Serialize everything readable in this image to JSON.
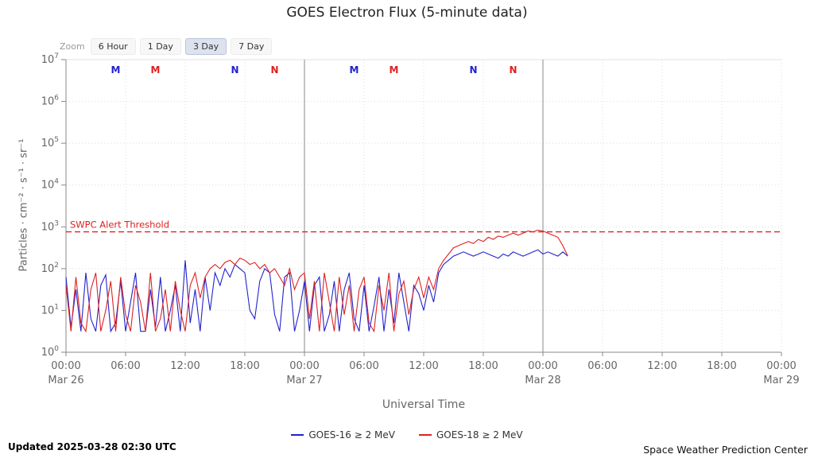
{
  "title": "GOES Electron Flux (5-minute data)",
  "zoom": {
    "label": "Zoom",
    "options": [
      {
        "label": "6 Hour",
        "selected": false
      },
      {
        "label": "1 Day",
        "selected": false
      },
      {
        "label": "3 Day",
        "selected": true
      },
      {
        "label": "7 Day",
        "selected": false
      }
    ]
  },
  "chart_data": {
    "type": "line",
    "title": "GOES Electron Flux (5-minute data)",
    "xlabel": "Universal Time",
    "ylabel": "Particles · cm⁻² · s⁻¹ · sr⁻¹",
    "x_axis": {
      "hours_span": 72,
      "start": "Mar 26 00:00 UTC",
      "end": "Mar 29 00:00 UTC",
      "ticks": [
        {
          "hour": 0,
          "time": "00:00",
          "date": "Mar 26"
        },
        {
          "hour": 6,
          "time": "06:00"
        },
        {
          "hour": 12,
          "time": "12:00"
        },
        {
          "hour": 18,
          "time": "18:00"
        },
        {
          "hour": 24,
          "time": "00:00",
          "date": "Mar 27"
        },
        {
          "hour": 30,
          "time": "06:00"
        },
        {
          "hour": 36,
          "time": "12:00"
        },
        {
          "hour": 42,
          "time": "18:00"
        },
        {
          "hour": 48,
          "time": "00:00",
          "date": "Mar 28"
        },
        {
          "hour": 54,
          "time": "06:00"
        },
        {
          "hour": 60,
          "time": "12:00"
        },
        {
          "hour": 66,
          "time": "18:00"
        },
        {
          "hour": 72,
          "time": "00:00",
          "date": "Mar 29"
        }
      ]
    },
    "y_axis": {
      "scale": "log",
      "min_exponent": 0,
      "max_exponent": 7,
      "tick_exponents": [
        0,
        1,
        2,
        3,
        4,
        5,
        6,
        7
      ],
      "tick_base": "10"
    },
    "threshold": {
      "label": "SWPC Alert Threshold",
      "log_value": 2.88,
      "color": "#dd2222"
    },
    "satellite_markers": [
      {
        "label": "M",
        "hour": 5,
        "color": "#2222cc"
      },
      {
        "label": "M",
        "hour": 9,
        "color": "#dd2222"
      },
      {
        "label": "N",
        "hour": 17,
        "color": "#2222cc"
      },
      {
        "label": "N",
        "hour": 21,
        "color": "#dd2222"
      },
      {
        "label": "M",
        "hour": 29,
        "color": "#2222cc"
      },
      {
        "label": "M",
        "hour": 33,
        "color": "#dd2222"
      },
      {
        "label": "N",
        "hour": 41,
        "color": "#2222cc"
      },
      {
        "label": "N",
        "hour": 45,
        "color": "#dd2222"
      }
    ],
    "series": [
      {
        "name": "GOES-16 ≥ 2 MeV",
        "color": "#2222cc",
        "start_hour": 0,
        "step_hours": 0.5,
        "log_values": [
          1.8,
          0.6,
          1.5,
          0.5,
          1.9,
          0.8,
          0.5,
          1.6,
          1.85,
          0.5,
          0.7,
          1.7,
          0.5,
          1.2,
          1.9,
          0.5,
          0.5,
          1.5,
          0.6,
          1.8,
          0.5,
          1.0,
          1.6,
          0.5,
          2.2,
          0.7,
          1.5,
          0.5,
          1.8,
          1.0,
          1.9,
          1.6,
          2.0,
          1.8,
          2.1,
          2.0,
          1.9,
          1.0,
          0.8,
          1.7,
          2.0,
          1.9,
          0.9,
          0.5,
          1.8,
          1.9,
          0.5,
          1.0,
          1.7,
          0.5,
          1.6,
          1.8,
          0.5,
          0.9,
          1.7,
          0.5,
          1.5,
          1.9,
          0.8,
          0.5,
          1.6,
          0.5,
          1.1,
          1.8,
          0.5,
          1.5,
          0.7,
          1.9,
          1.2,
          0.5,
          1.6,
          1.4,
          1.0,
          1.6,
          1.2,
          1.9,
          2.1,
          2.2,
          2.3,
          2.35,
          2.4,
          2.35,
          2.3,
          2.35,
          2.4,
          2.35,
          2.3,
          2.25,
          2.35,
          2.3,
          2.4,
          2.35,
          2.3,
          2.35,
          2.4,
          2.45,
          2.35,
          2.4,
          2.35,
          2.3,
          2.4,
          2.3
        ]
      },
      {
        "name": "GOES-18 ≥ 2 MeV",
        "color": "#dd2222",
        "start_hour": 0,
        "step_hours": 0.5,
        "log_values": [
          1.6,
          0.5,
          1.8,
          0.7,
          0.5,
          1.5,
          1.9,
          0.5,
          1.0,
          1.7,
          0.5,
          1.8,
          0.9,
          0.5,
          1.6,
          1.2,
          0.5,
          1.9,
          0.5,
          0.8,
          1.5,
          0.5,
          1.7,
          1.0,
          0.5,
          1.6,
          1.9,
          1.3,
          1.8,
          2.0,
          2.1,
          2.0,
          2.15,
          2.2,
          2.1,
          2.25,
          2.2,
          2.1,
          2.15,
          2.0,
          2.1,
          1.9,
          2.0,
          1.8,
          1.6,
          2.0,
          1.5,
          1.8,
          1.9,
          0.8,
          1.7,
          0.5,
          1.9,
          1.2,
          0.5,
          1.8,
          0.9,
          1.6,
          0.5,
          1.5,
          1.8,
          0.7,
          0.5,
          1.6,
          1.0,
          1.9,
          0.5,
          1.4,
          1.7,
          0.9,
          1.5,
          1.8,
          1.3,
          1.8,
          1.5,
          2.0,
          2.2,
          2.35,
          2.5,
          2.55,
          2.6,
          2.65,
          2.6,
          2.7,
          2.65,
          2.75,
          2.7,
          2.78,
          2.75,
          2.8,
          2.85,
          2.8,
          2.85,
          2.9,
          2.88,
          2.92,
          2.9,
          2.85,
          2.8,
          2.75,
          2.55,
          2.3
        ]
      }
    ]
  },
  "legend": [
    {
      "label": "GOES-16 ≥ 2 MeV",
      "color": "#2222cc"
    },
    {
      "label": "GOES-18 ≥ 2 MeV",
      "color": "#dd2222"
    }
  ],
  "footer": {
    "updated": "Updated 2025-03-28 02:30 UTC",
    "source": "Space Weather Prediction Center"
  }
}
